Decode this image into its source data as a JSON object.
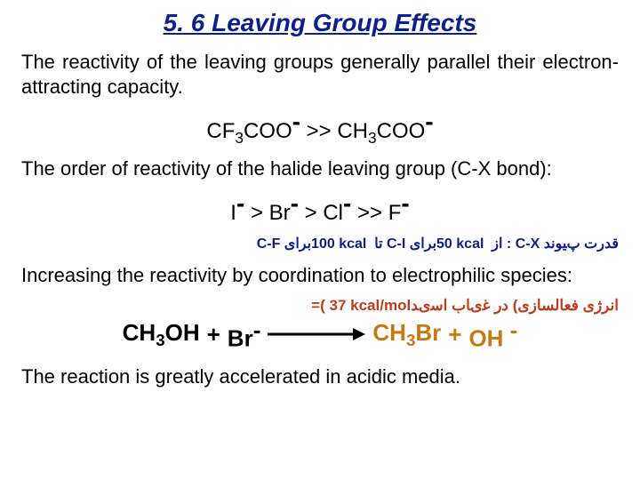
{
  "colors": {
    "title": "#0b1f8f",
    "text": "#000000",
    "persian": "#0b1f8f",
    "activation": "#c23a1c",
    "mol_left": "#000000",
    "mol_right": "#c77a12",
    "arrow": "#000000"
  },
  "fontsizes": {
    "title": 28,
    "body": 22,
    "chem": 24,
    "chem_sup": 28,
    "halide": 24,
    "halide_sup": 28,
    "persian": 16,
    "activation": 17,
    "eqn": 26,
    "eqn_sup": 26
  },
  "layout": {
    "arrow_thickness": 3,
    "arrow_head": 14
  },
  "title": "5. 6 Leaving Group Effects",
  "para1": "The reactivity of the leaving groups generally parallel their electron-attracting capacity.",
  "chem1": {
    "l_pre": "CF",
    "l_sub": "3",
    "l_post": "COO",
    "op": " >> ",
    "r_pre": "CH",
    "r_sub": "3",
    "r_post": "COO"
  },
  "para2": "The order of reactivity of the halide leaving group (C-X bond):",
  "halide": {
    "a": "I",
    "b": "Br",
    "c": "Cl",
    "d": "F",
    "op1": " > ",
    "op2": " > ",
    "op3": ">> "
  },
  "persian": {
    "seg1": "ﻗﺪﺭﺕ پﯿﻮﻧﺪ ",
    "cx": "C-X",
    "seg2": " : ﺍﺯ ",
    "n1": "50",
    "kcal": " kcal ",
    "seg3": "ﺑﺮﺍی ",
    "ci": "C-I",
    "seg4": " ﺗﺎ ",
    "n2": "100",
    "cf": "C-F",
    "seg5": " ﺑﺮﺍی "
  },
  "para3": "Increasing the reactivity by coordination to electrophilic species:",
  "activation": {
    "fa": "ﺍﻧﺮژی ﻓﻌﺎﻟﺴﺎﺯی) ﺩﺭ ﻏیﺎﺏ ﺍﺳیﺪ",
    "eq": "=(",
    "val": "37",
    "unit": " kcal/mol"
  },
  "eqn": {
    "m1_pre": "CH",
    "m1_sub": "3",
    "m1_post": "OH",
    "m2": "Br",
    "m3_pre": "CH",
    "m3_sub": "3",
    "m3_post": "Br",
    "m4": "OH",
    "plus": "+"
  },
  "para4": "The reaction is greatly accelerated in acidic media."
}
